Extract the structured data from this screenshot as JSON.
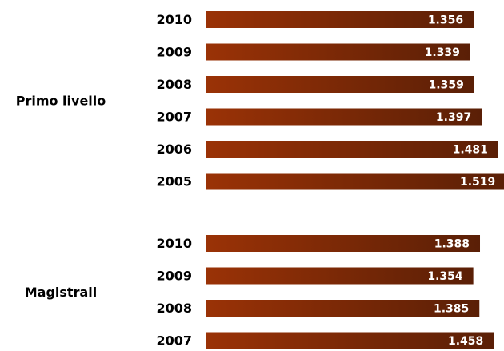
{
  "colors": {
    "bar_start": "#9a3206",
    "bar_end": "#5a1f06",
    "text": "#000000",
    "value_text": "#ffffff"
  },
  "chart_data": {
    "type": "bar",
    "orientation": "horizontal",
    "xlim": [
      0,
      1.6
    ],
    "groups": [
      {
        "name": "Primo livello",
        "categories": [
          "2010",
          "2009",
          "2008",
          "2007",
          "2006",
          "2005"
        ],
        "values": [
          1.356,
          1.339,
          1.359,
          1.397,
          1.481,
          1.519
        ],
        "value_labels": [
          "1.356",
          "1.339",
          "1.359",
          "1.397",
          "1.481",
          "1.519"
        ]
      },
      {
        "name": "Magistrali",
        "categories": [
          "2010",
          "2009",
          "2008",
          "2007"
        ],
        "values": [
          1.388,
          1.354,
          1.385,
          1.458
        ],
        "value_labels": [
          "1.388",
          "1.354",
          "1.385",
          "1.458"
        ]
      }
    ]
  }
}
